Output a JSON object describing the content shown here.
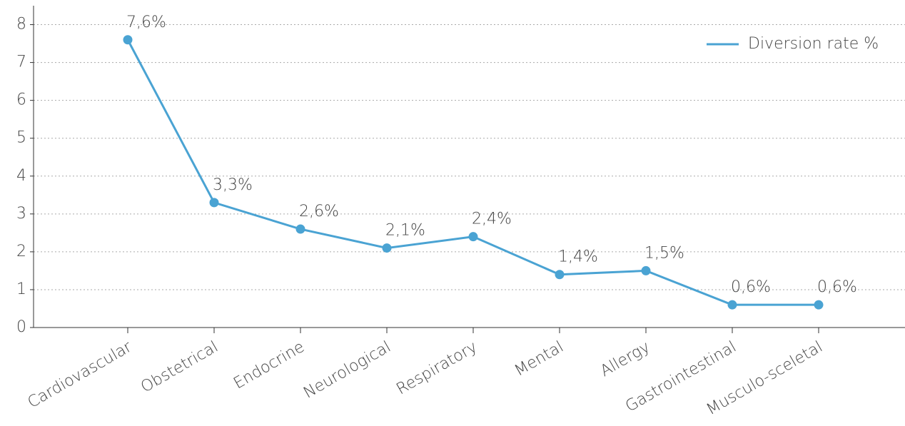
{
  "chart_data": {
    "type": "line",
    "categories": [
      "Cardiovascular",
      "Obstetrical",
      "Endocrine",
      "Neurological",
      "Respiratory",
      "Mental",
      "Allergy",
      "Gastrointestinal",
      "Musculo-sceletal"
    ],
    "series": [
      {
        "name": "Diversion rate %",
        "color": "#4aa3d3",
        "values": [
          7.6,
          3.3,
          2.6,
          2.1,
          2.4,
          1.4,
          1.5,
          0.6,
          0.6
        ],
        "value_labels": [
          "7,6%",
          "3,3%",
          "2,6%",
          "2,1%",
          "2,4%",
          "1,4%",
          "1,5%",
          "0,6%",
          "0,6%"
        ]
      }
    ],
    "ylim": [
      0,
      8.5
    ],
    "yticks": [
      0,
      1,
      2,
      3,
      4,
      5,
      6,
      7,
      8
    ],
    "grid": true,
    "legend": "upper right"
  }
}
